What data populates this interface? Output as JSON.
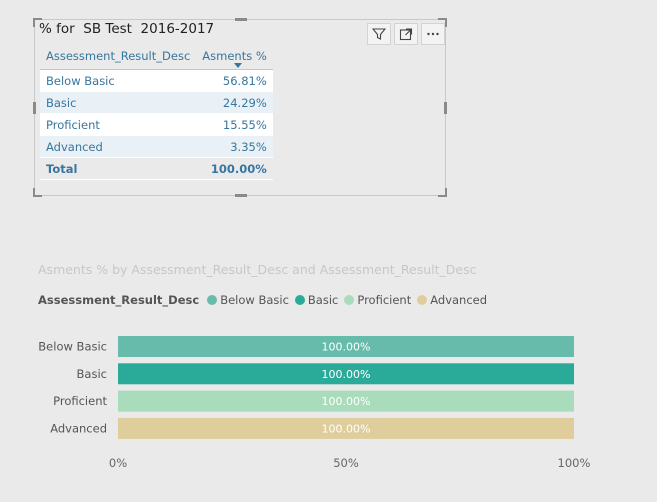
{
  "table_visual": {
    "title": "% for  SB Test  2016-2017",
    "icons": [
      "filter-icon",
      "focus-mode-icon",
      "more-options-icon"
    ],
    "columns": [
      "Assessment_Result_Desc",
      "Asments %"
    ],
    "rows": [
      {
        "label": "Below Basic",
        "value": "56.81%"
      },
      {
        "label": "Basic",
        "value": "24.29%"
      },
      {
        "label": "Proficient",
        "value": "15.55%"
      },
      {
        "label": "Advanced",
        "value": "3.35%"
      }
    ],
    "total": {
      "label": "Total",
      "value": "100.00%"
    }
  },
  "bar_visual": {
    "title": "Asments % by Assessment_Result_Desc and Assessment_Result_Desc",
    "legend_title": "Assessment_Result_Desc"
  },
  "chart_data": {
    "type": "bar",
    "orientation": "horizontal",
    "title": "Asments % by Assessment_Result_Desc and Assessment_Result_Desc",
    "legend_title": "Assessment_Result_Desc",
    "legend_placement": "top-left",
    "categories": [
      "Below Basic",
      "Basic",
      "Proficient",
      "Advanced"
    ],
    "values": [
      100,
      100,
      100,
      100
    ],
    "data_labels": [
      "100.00%",
      "100.00%",
      "100.00%",
      "100.00%"
    ],
    "series": [
      {
        "name": "Below Basic",
        "color": "#66bbaa"
      },
      {
        "name": "Basic",
        "color": "#2aab9a"
      },
      {
        "name": "Proficient",
        "color": "#a9dcbb"
      },
      {
        "name": "Advanced",
        "color": "#dfcd9b"
      }
    ],
    "xlim": [
      0,
      100
    ],
    "xticks": [
      "0%",
      "50%",
      "100%"
    ],
    "xtick_values": [
      0,
      50,
      100
    ],
    "grid": false
  }
}
